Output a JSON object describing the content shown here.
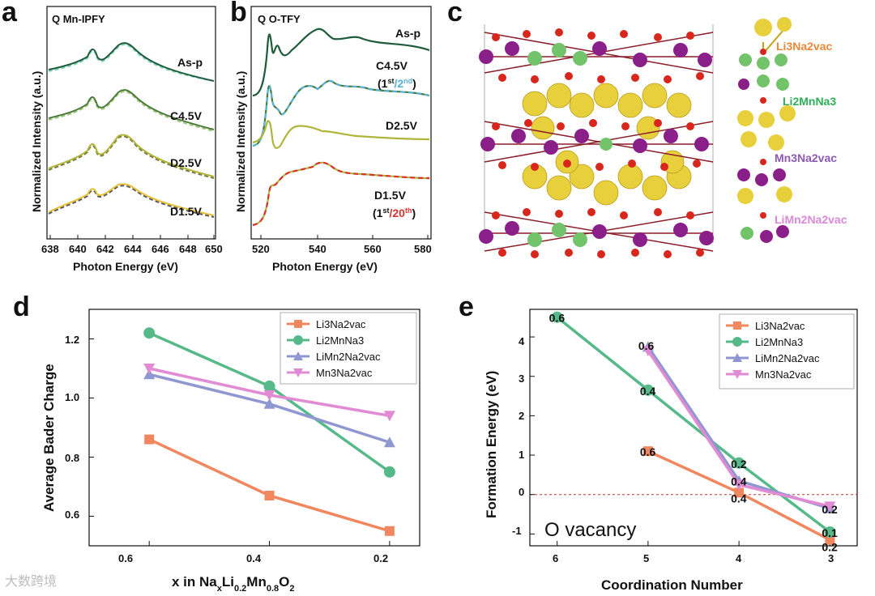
{
  "panels": {
    "a": {
      "letter": "a",
      "title": "Q Mn-IPFY",
      "xlabel": "Photon Energy (eV)",
      "ylabel": "Normalized Intensity (a.u.)",
      "xticks": [
        "638",
        "640",
        "642",
        "644",
        "646",
        "648",
        "650"
      ],
      "traces": [
        "As-p",
        "C4.5V",
        "D2.5V",
        "D1.5V"
      ]
    },
    "b": {
      "letter": "b",
      "title": "Q O-TFY",
      "xlabel": "Photon Energy (eV)",
      "ylabel": "Normalized Intensity (a.u.)",
      "xticks": [
        "520",
        "540",
        "560",
        "580"
      ],
      "traces": [
        "As-p",
        "C4.5V",
        "D2.5V",
        "D1.5V"
      ],
      "note_c45_open": "(1",
      "note_c45_sup1": "st",
      "note_c45_slash": "/2",
      "note_c45_sup2": "nd",
      "note_c45_close": ")",
      "note_d15_open": "(1",
      "note_d15_sup1": "st",
      "note_d15_slash": "/20",
      "note_d15_sup2": "th",
      "note_d15_close": ")"
    },
    "c": {
      "letter": "c",
      "labels": [
        "Li3Na2vac",
        "Li2MnNa3",
        "Mn3Na2vac",
        "LiMn2Na2vac"
      ],
      "label_colors": [
        "#e8893a",
        "#2fae5a",
        "#8b5ab0",
        "#d98ad6"
      ]
    },
    "d": {
      "letter": "d",
      "xlabel_pre": "x in Na",
      "xlabel_sub1": "x",
      "xlabel_mid1": "Li",
      "xlabel_sub2": "0.2",
      "xlabel_mid2": "Mn",
      "xlabel_sub3": "0.8",
      "xlabel_mid3": "O",
      "xlabel_sub4": "2",
      "ylabel": "Average Bader Charge",
      "xticks": [
        "0.6",
        "0.4",
        "0.2"
      ],
      "yticks": [
        "0.6",
        "0.8",
        "1.0",
        "1.2"
      ]
    },
    "e": {
      "letter": "e",
      "xlabel": "Coordination Number",
      "ylabel": "Formation Energy (eV)",
      "xticks": [
        "6",
        "5",
        "4",
        "3"
      ],
      "yticks": [
        "-1",
        "0",
        "1",
        "2",
        "3",
        "4"
      ],
      "annotation": "O vacancy",
      "point_labels": [
        {
          "text": "0.6",
          "color": "#c0392b"
        },
        {
          "text": "0.6",
          "color": "#111111"
        },
        {
          "text": "0.4",
          "color": "#c0392b"
        },
        {
          "text": "0.6",
          "color": "#111111"
        },
        {
          "text": "0.2",
          "color": "#c0392b"
        },
        {
          "text": "0.4",
          "color": "#111111"
        },
        {
          "text": "0.4",
          "color": "#111111"
        },
        {
          "text": "0.2",
          "color": "#111111"
        },
        {
          "text": "0.1",
          "color": "#c0392b"
        },
        {
          "text": "0.2",
          "color": "#111111"
        }
      ]
    }
  },
  "watermark": "大数跨境",
  "chart_data": [
    {
      "type": "line",
      "panel": "d",
      "x": [
        0.6,
        0.4,
        0.2
      ],
      "xlim": [
        0.7,
        0.15
      ],
      "ylim": [
        0.5,
        1.3
      ],
      "series": [
        {
          "name": "Li3Na2vac",
          "color": "#f0875f",
          "marker": "square",
          "values": [
            0.86,
            0.67,
            0.55
          ]
        },
        {
          "name": "Li2MnNa3",
          "color": "#56b98a",
          "marker": "circle",
          "values": [
            1.22,
            1.04,
            0.75
          ]
        },
        {
          "name": "LiMn2Na2vac",
          "color": "#8f97d0",
          "marker": "triangle-up",
          "values": [
            1.08,
            0.98,
            0.85
          ]
        },
        {
          "name": "Mn3Na2vac",
          "color": "#e08bd4",
          "marker": "triangle-down",
          "values": [
            1.1,
            1.01,
            0.94
          ]
        }
      ],
      "legend": "top-right"
    },
    {
      "type": "line",
      "panel": "e",
      "xlim": [
        6.3,
        2.7
      ],
      "ylim": [
        -1.3,
        4.7
      ],
      "series": [
        {
          "name": "Li3Na2vac",
          "color": "#f0875f",
          "marker": "square",
          "x": [
            5,
            4,
            3
          ],
          "values": [
            1.1,
            0.05,
            -1.15
          ]
        },
        {
          "name": "Li2MnNa3",
          "color": "#56b98a",
          "marker": "circle",
          "x": [
            6,
            5,
            4,
            3
          ],
          "values": [
            4.5,
            2.65,
            0.8,
            -0.95
          ]
        },
        {
          "name": "LiMn2Na2vac",
          "color": "#8f97d0",
          "marker": "triangle-up",
          "x": [
            5,
            4,
            3
          ],
          "values": [
            3.75,
            0.35,
            -0.35
          ]
        },
        {
          "name": "Mn3Na2vac",
          "color": "#e08bd4",
          "marker": "triangle-down",
          "x": [
            5,
            4,
            3
          ],
          "values": [
            3.65,
            0.25,
            -0.3
          ]
        }
      ],
      "reference_line": 0,
      "legend": "top-right"
    }
  ]
}
